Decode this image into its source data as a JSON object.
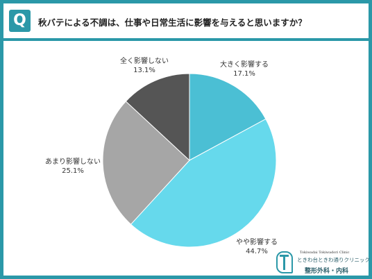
{
  "header": {
    "badge": "Q",
    "question": "秋バテによる不調は、仕事や日常生活に影響を与えると思いますか？"
  },
  "colors": {
    "frame": "#2b98a8"
  },
  "chart_data": {
    "type": "pie",
    "title": "",
    "start_angle_deg": 0,
    "direction": "clockwise",
    "slices": [
      {
        "label": "大きく影響する",
        "value": 17.1,
        "display": "17.1%",
        "color": "#4bbfd4"
      },
      {
        "label": "やや影響する",
        "value": 44.7,
        "display": "44.7%",
        "color": "#66d9ec"
      },
      {
        "label": "あまり影響しない",
        "value": 25.1,
        "display": "25.1%",
        "color": "#a6a6a6"
      },
      {
        "label": "全く影響しない",
        "value": 13.1,
        "display": "13.1%",
        "color": "#555555"
      }
    ]
  },
  "logo": {
    "roman": "Tokiwadai Tokiwadori Clinic",
    "name": "ときわ台ときわ通りクリニック",
    "dept": "整形外科・内科"
  }
}
